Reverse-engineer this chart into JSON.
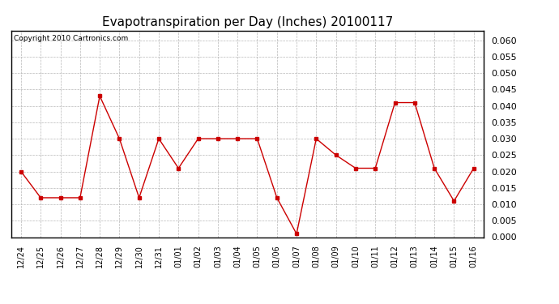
{
  "title": "Evapotranspiration per Day (Inches) 20100117",
  "copyright_text": "Copyright 2010 Cartronics.com",
  "x_labels": [
    "12/24",
    "12/25",
    "12/26",
    "12/27",
    "12/28",
    "12/29",
    "12/30",
    "12/31",
    "01/01",
    "01/02",
    "01/03",
    "01/04",
    "01/05",
    "01/06",
    "01/07",
    "01/08",
    "01/09",
    "01/10",
    "01/11",
    "01/12",
    "01/13",
    "01/14",
    "01/15",
    "01/16"
  ],
  "y_values": [
    0.02,
    0.012,
    0.012,
    0.012,
    0.043,
    0.03,
    0.012,
    0.03,
    0.021,
    0.03,
    0.03,
    0.03,
    0.03,
    0.012,
    0.001,
    0.03,
    0.025,
    0.021,
    0.021,
    0.041,
    0.041,
    0.021,
    0.011,
    0.021
  ],
  "line_color": "#cc0000",
  "marker": "s",
  "marker_size": 3,
  "ylim": [
    0.0,
    0.063
  ],
  "yticks": [
    0.0,
    0.005,
    0.01,
    0.015,
    0.02,
    0.025,
    0.03,
    0.035,
    0.04,
    0.045,
    0.05,
    0.055,
    0.06
  ],
  "background_color": "#ffffff",
  "grid_color": "#b0b0b0",
  "title_fontsize": 11,
  "copyright_fontsize": 6.5,
  "tick_fontsize": 7,
  "ytick_fontsize": 8,
  "ytick_fontweight": "bold"
}
